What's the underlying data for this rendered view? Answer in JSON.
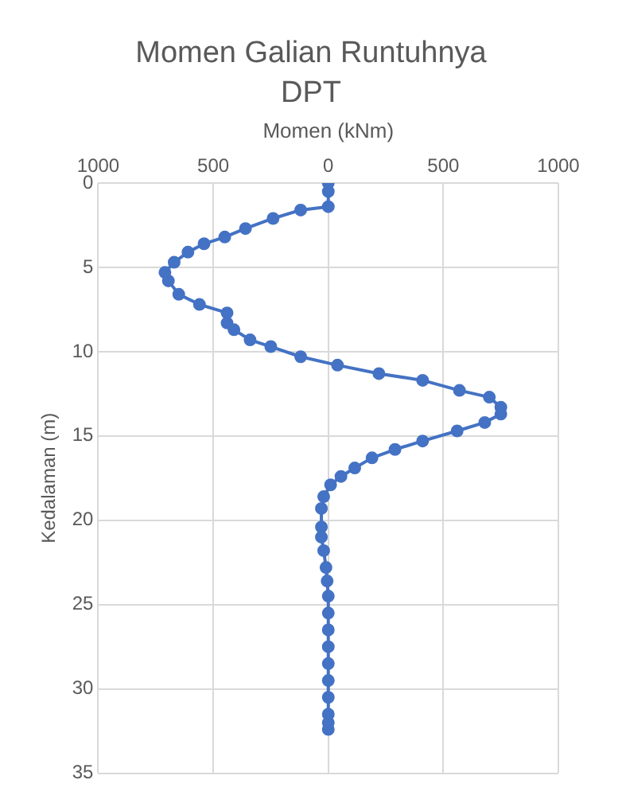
{
  "chart_data": {
    "type": "line",
    "title": "Momen Galian Runtuhnya DPT",
    "xlabel": "Momen (kNm)",
    "ylabel": "Kedalaman (m)",
    "xlim": [
      -1000,
      1000
    ],
    "xticks": [
      {
        "value": -1000,
        "label": "1000"
      },
      {
        "value": -500,
        "label": "500"
      },
      0,
      500,
      1000
    ],
    "ylim": [
      35,
      0
    ],
    "yticks": [
      0,
      5,
      10,
      15,
      20,
      25,
      30,
      35
    ],
    "grid": true,
    "legend": false,
    "marker": "circle",
    "line_style": "solid",
    "series": [
      {
        "color": "#4472c4",
        "x": [
          0,
          0,
          0,
          -120,
          -240,
          -360,
          -450,
          -540,
          -610,
          -670,
          -710,
          -695,
          -650,
          -560,
          -440,
          -440,
          -410,
          -340,
          -250,
          -120,
          40,
          220,
          410,
          570,
          700,
          750,
          750,
          680,
          560,
          410,
          290,
          190,
          115,
          55,
          10,
          -20,
          -30,
          -30,
          -30,
          -20,
          -10,
          -5,
          0,
          0,
          0,
          0,
          0,
          0,
          0,
          0,
          0,
          0
        ],
        "values": [
          0,
          0.5,
          1.4,
          1.6,
          2.1,
          2.7,
          3.2,
          3.6,
          4.1,
          4.7,
          5.3,
          5.8,
          6.6,
          7.2,
          7.7,
          8.3,
          8.7,
          9.3,
          9.7,
          10.3,
          10.8,
          11.3,
          11.7,
          12.3,
          12.7,
          13.3,
          13.7,
          14.2,
          14.7,
          15.3,
          15.8,
          16.3,
          16.9,
          17.4,
          17.9,
          18.6,
          19.3,
          20.4,
          21,
          21.8,
          22.8,
          23.6,
          24.5,
          25.5,
          26.5,
          27.5,
          28.5,
          29.5,
          30.5,
          31.5,
          32,
          32.4
        ]
      }
    ]
  }
}
